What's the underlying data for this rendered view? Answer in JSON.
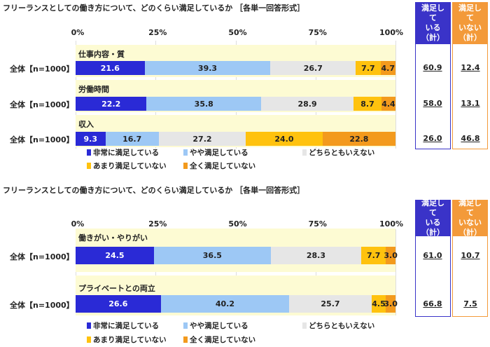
{
  "chart_data": [
    {
      "type": "bar",
      "orientation": "horizontal-stacked-100",
      "title": "フリーランスとしての働き方について、どのくらい満足しているか ［各単一回答形式］",
      "xlim": [
        0,
        100
      ],
      "ticks": [
        "0%",
        "25%",
        "50%",
        "75%",
        "100%"
      ],
      "legend": [
        "非常に満足している",
        "やや満足している",
        "どちらともいえない",
        "あまり満足していない",
        "全く満足していない"
      ],
      "colors": [
        "#2a2ad6",
        "#9dc8f5",
        "#e6e6e6",
        "#ffc20e",
        "#f39a1d"
      ],
      "summary_headers": [
        "満足している（計）",
        "満足していない（計）"
      ],
      "summary_colors": [
        "#3a33c8",
        "#f39a3a"
      ],
      "items": [
        {
          "category": "仕事内容・質",
          "row_label": "全体【n=1000】",
          "values": [
            21.6,
            39.3,
            26.7,
            7.7,
            4.7
          ],
          "satisfied": "60.9",
          "unsatisfied": "12.4"
        },
        {
          "category": "労働時間",
          "row_label": "全体【n=1000】",
          "values": [
            22.2,
            35.8,
            28.9,
            8.7,
            4.4
          ],
          "satisfied": "58.0",
          "unsatisfied": "13.1"
        },
        {
          "category": "収入",
          "row_label": "全体【n=1000】",
          "values": [
            9.3,
            16.7,
            27.2,
            24.0,
            22.8
          ],
          "satisfied": "26.0",
          "unsatisfied": "46.8"
        }
      ]
    },
    {
      "type": "bar",
      "orientation": "horizontal-stacked-100",
      "title": "フリーランスとしての働き方について、どのくらい満足しているか ［各単一回答形式］",
      "xlim": [
        0,
        100
      ],
      "ticks": [
        "0%",
        "25%",
        "50%",
        "75%",
        "100%"
      ],
      "legend": [
        "非常に満足している",
        "やや満足している",
        "どちらともいえない",
        "あまり満足していない",
        "全く満足していない"
      ],
      "colors": [
        "#2a2ad6",
        "#9dc8f5",
        "#e6e6e6",
        "#ffc20e",
        "#f39a1d"
      ],
      "summary_headers": [
        "満足している（計）",
        "満足していない（計）"
      ],
      "summary_colors": [
        "#3a33c8",
        "#f39a3a"
      ],
      "items": [
        {
          "category": "働きがい・やりがい",
          "row_label": "全体【n=1000】",
          "values": [
            24.5,
            36.5,
            28.3,
            7.7,
            3.0
          ],
          "satisfied": "61.0",
          "unsatisfied": "10.7"
        },
        {
          "category": "プライベートとの両立",
          "row_label": "全体【n=1000】",
          "values": [
            26.6,
            40.2,
            25.7,
            4.5,
            3.0
          ],
          "satisfied": "66.8",
          "unsatisfied": "7.5"
        }
      ]
    }
  ]
}
